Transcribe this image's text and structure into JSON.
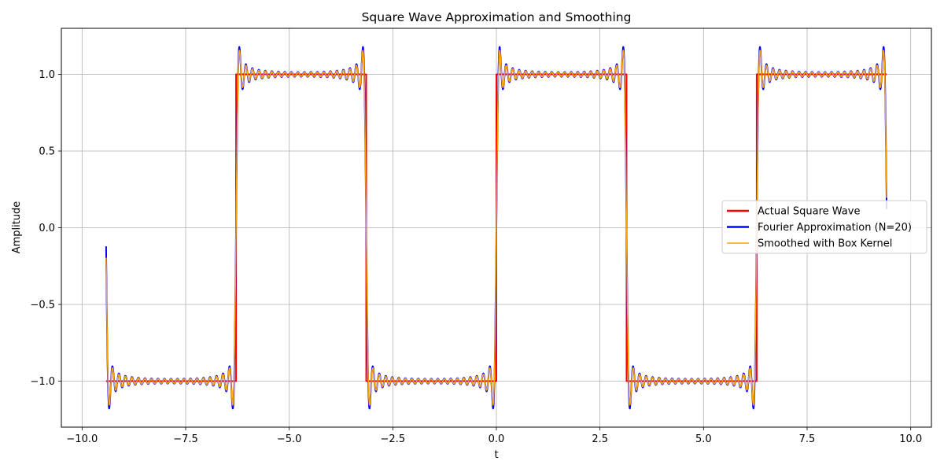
{
  "chart_data": {
    "type": "line",
    "title": "Square Wave Approximation and Smoothing",
    "xlabel": "t",
    "ylabel": "Amplitude",
    "xlim": [
      -10.5,
      10.5
    ],
    "ylim": [
      -1.3,
      1.3
    ],
    "xticks": [
      -10.0,
      -7.5,
      -5.0,
      -2.5,
      0.0,
      2.5,
      5.0,
      7.5,
      10.0
    ],
    "xtick_labels": [
      "−10.0",
      "−7.5",
      "−5.0",
      "−2.5",
      "0.0",
      "2.5",
      "5.0",
      "7.5",
      "10.0"
    ],
    "yticks": [
      -1.0,
      -0.5,
      0.0,
      0.5,
      1.0
    ],
    "ytick_labels": [
      "−1.0",
      "−0.5",
      "0.0",
      "0.5",
      "1.0"
    ],
    "grid": true,
    "legend_position": "center-right",
    "t_range": [
      -9.42,
      9.42
    ],
    "period": 6.283,
    "fourier_terms": 20,
    "series": [
      {
        "name": "Actual Square Wave",
        "color": "#ff0000",
        "kind": "square",
        "samples": [
          [
            -9.42,
            -1.0
          ],
          [
            -6.283,
            -1.0
          ],
          [
            -6.283,
            1.0
          ],
          [
            -3.142,
            1.0
          ],
          [
            -3.142,
            -1.0
          ],
          [
            0.0,
            -1.0
          ],
          [
            0.0,
            1.0
          ],
          [
            3.142,
            1.0
          ],
          [
            3.142,
            -1.0
          ],
          [
            6.283,
            -1.0
          ],
          [
            6.283,
            1.0
          ],
          [
            9.42,
            1.0
          ]
        ]
      },
      {
        "name": "Fourier Approximation (N=20)",
        "color": "#0000ff",
        "kind": "fourier",
        "samples": [
          [
            -9.42,
            0.0
          ],
          [
            -9.35,
            -1.18
          ],
          [
            -7.85,
            -1.0
          ],
          [
            -6.33,
            -1.18
          ],
          [
            -6.283,
            0.0
          ],
          [
            -6.23,
            1.18
          ],
          [
            -4.71,
            1.0
          ],
          [
            -3.19,
            1.18
          ],
          [
            -3.142,
            0.0
          ],
          [
            -3.09,
            -1.18
          ],
          [
            -1.57,
            -1.0
          ],
          [
            -0.05,
            -1.18
          ],
          [
            0.0,
            0.0
          ],
          [
            0.05,
            1.18
          ],
          [
            1.57,
            1.0
          ],
          [
            3.09,
            1.18
          ],
          [
            3.142,
            0.0
          ],
          [
            3.19,
            -1.18
          ],
          [
            4.71,
            -1.0
          ],
          [
            6.23,
            -1.18
          ],
          [
            6.283,
            0.0
          ],
          [
            6.33,
            1.18
          ],
          [
            7.85,
            1.0
          ],
          [
            9.35,
            1.18
          ],
          [
            9.42,
            0.0
          ]
        ]
      },
      {
        "name": "Smoothed with Box Kernel",
        "color": "#ffa500",
        "kind": "smoothed",
        "samples": [
          [
            -9.42,
            0.0
          ],
          [
            -9.35,
            -1.15
          ],
          [
            -7.85,
            -1.0
          ],
          [
            -6.33,
            -1.15
          ],
          [
            -6.283,
            0.0
          ],
          [
            -6.23,
            1.15
          ],
          [
            -4.71,
            1.0
          ],
          [
            -3.19,
            1.15
          ],
          [
            -3.142,
            0.0
          ],
          [
            -3.09,
            -1.15
          ],
          [
            -1.57,
            -1.0
          ],
          [
            -0.05,
            -1.15
          ],
          [
            0.0,
            0.0
          ],
          [
            0.05,
            1.15
          ],
          [
            1.57,
            1.0
          ],
          [
            3.09,
            1.15
          ],
          [
            3.142,
            0.0
          ],
          [
            3.19,
            -1.15
          ],
          [
            4.71,
            -1.0
          ],
          [
            6.23,
            -1.15
          ],
          [
            6.283,
            0.0
          ],
          [
            6.33,
            1.15
          ],
          [
            7.85,
            1.0
          ],
          [
            9.35,
            1.15
          ],
          [
            9.42,
            0.0
          ]
        ]
      }
    ]
  }
}
